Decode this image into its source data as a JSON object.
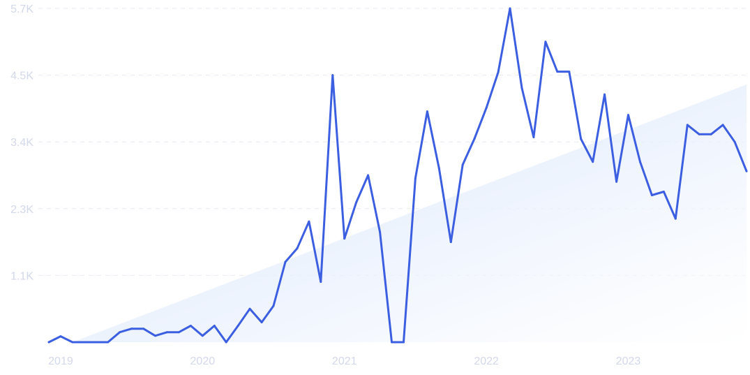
{
  "chart_data": {
    "type": "line",
    "title": "",
    "xlabel": "",
    "ylabel": "",
    "x_ticks": [
      "2019",
      "2020",
      "2021",
      "2022",
      "2023"
    ],
    "y_ticks": [
      "1.1K",
      "2.3K",
      "3.4K",
      "4.5K",
      "5.7K"
    ],
    "y_tick_values": [
      1140,
      2280,
      3420,
      4560,
      5700
    ],
    "ylim": [
      0,
      5700
    ],
    "xlim": [
      "2018-12",
      "2023-11"
    ],
    "grid": true,
    "trend_area": {
      "start": [
        "2019-02",
        0
      ],
      "end": [
        "2023-11",
        4400
      ]
    },
    "series": [
      {
        "color": "#3b5fe0",
        "x": [
          "2018-12",
          "2019-01",
          "2019-02",
          "2019-03",
          "2019-04",
          "2019-05",
          "2019-06",
          "2019-07",
          "2019-08",
          "2019-09",
          "2019-10",
          "2019-11",
          "2019-12",
          "2020-01",
          "2020-02",
          "2020-03",
          "2020-04",
          "2020-05",
          "2020-06",
          "2020-07",
          "2020-08",
          "2020-09",
          "2020-10",
          "2020-11",
          "2020-12",
          "2021-01",
          "2021-02",
          "2021-03",
          "2021-04",
          "2021-05",
          "2021-06",
          "2021-07",
          "2021-08",
          "2021-09",
          "2021-10",
          "2021-11",
          "2021-12",
          "2022-01",
          "2022-02",
          "2022-03",
          "2022-04",
          "2022-05",
          "2022-06",
          "2022-07",
          "2022-08",
          "2022-09",
          "2022-10",
          "2022-11",
          "2022-12",
          "2023-01",
          "2023-02",
          "2023-03",
          "2023-04",
          "2023-05",
          "2023-06",
          "2023-07",
          "2023-08",
          "2023-09",
          "2023-10",
          "2023-11"
        ],
        "values": [
          0,
          100,
          0,
          0,
          0,
          0,
          170,
          230,
          230,
          110,
          170,
          170,
          280,
          110,
          280,
          0,
          280,
          570,
          340,
          620,
          1370,
          1600,
          2060,
          1030,
          4560,
          1770,
          2390,
          2850,
          1880,
          0,
          0,
          2800,
          3940,
          2970,
          1710,
          3030,
          3480,
          4000,
          4610,
          5700,
          4340,
          3500,
          5130,
          4620,
          4620,
          3470,
          3080,
          4230,
          2740,
          3880,
          3080,
          2510,
          2570,
          2110,
          3710,
          3550,
          3550,
          3710,
          3420,
          2920
        ]
      }
    ]
  }
}
